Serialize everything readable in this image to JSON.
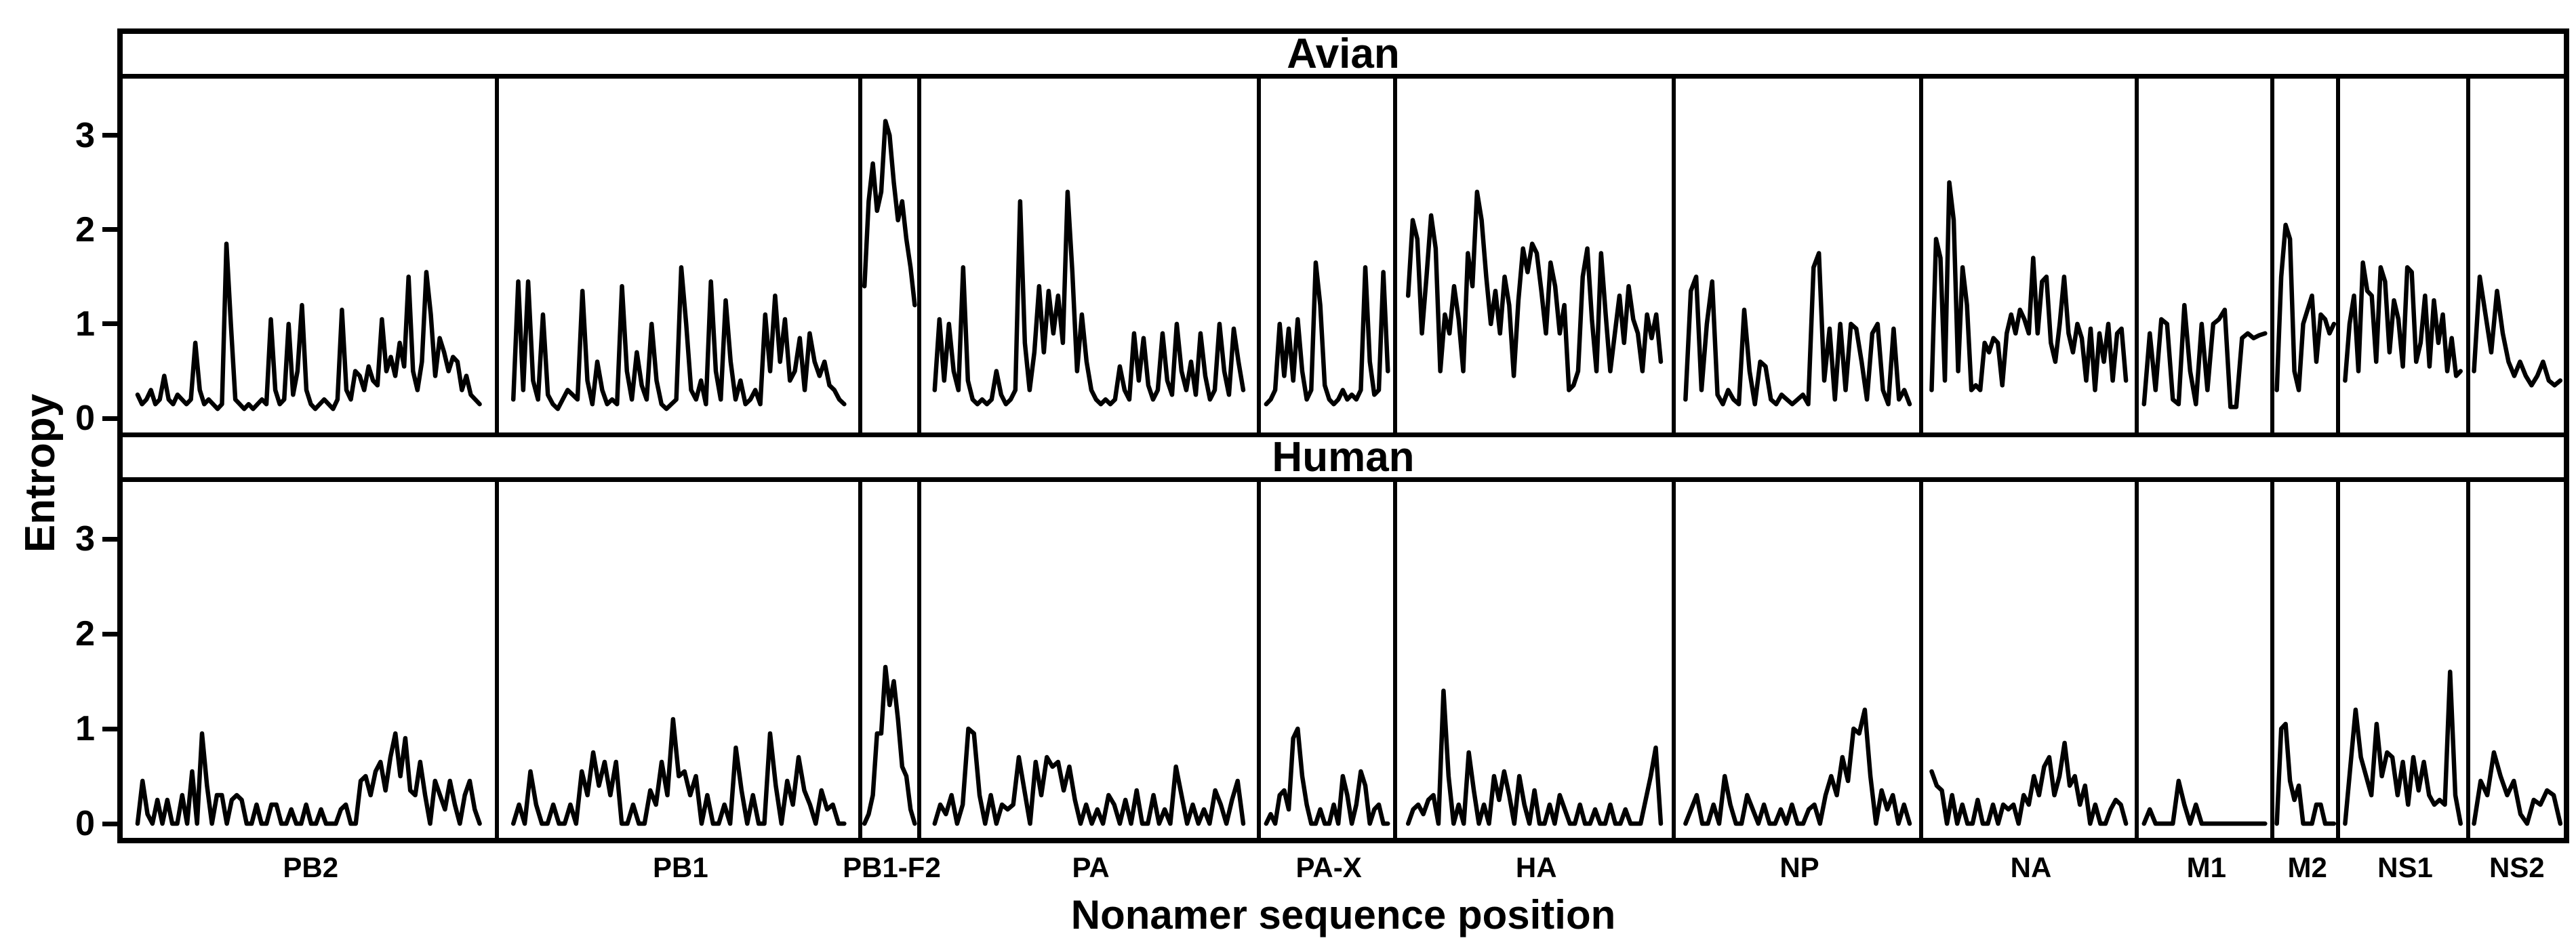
{
  "figure": {
    "background": "#ffffff",
    "line_color": "#000000",
    "border_color": "#000000"
  },
  "chart_data": {
    "type": "line",
    "title": "",
    "xlabel": "Nonamer sequence position",
    "ylabel": "Entropy",
    "ylim": [
      -0.15,
      3.6
    ],
    "y_ticks": [
      3,
      2,
      1,
      0
    ],
    "grid": "off",
    "legend": "none",
    "rows": [
      "Avian",
      "Human"
    ],
    "facets": [
      {
        "label": "PB2",
        "rel_width": 557,
        "avian": [
          0.25,
          0.15,
          0.2,
          0.3,
          0.15,
          0.2,
          0.45,
          0.2,
          0.15,
          0.25,
          0.2,
          0.15,
          0.2,
          0.8,
          0.3,
          0.15,
          0.2,
          0.15,
          0.1,
          0.15,
          1.85,
          1.0,
          0.2,
          0.15,
          0.1,
          0.15,
          0.1,
          0.15,
          0.2,
          0.15,
          1.05,
          0.3,
          0.15,
          0.2,
          1.0,
          0.25,
          0.5,
          1.2,
          0.3,
          0.15,
          0.1,
          0.15,
          0.2,
          0.15,
          0.1,
          0.2,
          1.15,
          0.3,
          0.2,
          0.5,
          0.45,
          0.3,
          0.55,
          0.4,
          0.35,
          1.05,
          0.5,
          0.65,
          0.45,
          0.8,
          0.55,
          1.5,
          0.5,
          0.3,
          0.6,
          1.55,
          1.1,
          0.45,
          0.85,
          0.7,
          0.5,
          0.65,
          0.6,
          0.3,
          0.45,
          0.25,
          0.2,
          0.15
        ],
        "human": [
          0,
          0.45,
          0.1,
          0,
          0.25,
          0,
          0.25,
          0,
          0,
          0.3,
          0,
          0.55,
          0,
          0.95,
          0.4,
          0,
          0.3,
          0.3,
          0,
          0.25,
          0.3,
          0.25,
          0,
          0,
          0.2,
          0,
          0,
          0.2,
          0.2,
          0,
          0,
          0.15,
          0,
          0,
          0.2,
          0,
          0,
          0.15,
          0,
          0,
          0,
          0.15,
          0.2,
          0,
          0,
          0.45,
          0.5,
          0.3,
          0.55,
          0.65,
          0.35,
          0.7,
          0.95,
          0.5,
          0.9,
          0.35,
          0.3,
          0.65,
          0.3,
          0,
          0.45,
          0.3,
          0.15,
          0.45,
          0.2,
          0,
          0.3,
          0.45,
          0.15,
          0
        ]
      },
      {
        "label": "PB1",
        "rel_width": 539,
        "avian": [
          0.2,
          1.45,
          0.3,
          1.45,
          0.4,
          0.2,
          1.1,
          0.25,
          0.15,
          0.1,
          0.2,
          0.3,
          0.25,
          0.2,
          1.35,
          0.4,
          0.15,
          0.6,
          0.3,
          0.15,
          0.2,
          0.15,
          1.4,
          0.5,
          0.2,
          0.7,
          0.35,
          0.2,
          1.0,
          0.4,
          0.15,
          0.1,
          0.15,
          0.2,
          1.6,
          1.0,
          0.3,
          0.2,
          0.4,
          0.15,
          1.45,
          0.5,
          0.2,
          1.25,
          0.6,
          0.2,
          0.4,
          0.15,
          0.2,
          0.3,
          0.15,
          1.1,
          0.5,
          1.3,
          0.6,
          1.05,
          0.4,
          0.5,
          0.85,
          0.3,
          0.9,
          0.6,
          0.45,
          0.6,
          0.35,
          0.3,
          0.2,
          0.15
        ],
        "human": [
          0,
          0.2,
          0,
          0.55,
          0.2,
          0,
          0,
          0.2,
          0,
          0,
          0.2,
          0,
          0.55,
          0.3,
          0.75,
          0.4,
          0.65,
          0.3,
          0.65,
          0,
          0,
          0.2,
          0,
          0,
          0.35,
          0.2,
          0.65,
          0.3,
          1.1,
          0.5,
          0.55,
          0.3,
          0.5,
          0,
          0.3,
          0,
          0,
          0.2,
          0,
          0.8,
          0.35,
          0,
          0.3,
          0,
          0,
          0.95,
          0.4,
          0,
          0.45,
          0.2,
          0.7,
          0.35,
          0.2,
          0,
          0.35,
          0.15,
          0.2,
          0,
          0
        ]
      },
      {
        "label": "PB1-F2",
        "rel_width": 87,
        "avian": [
          1.4,
          2.3,
          2.7,
          2.2,
          2.4,
          3.15,
          3.0,
          2.5,
          2.1,
          2.3,
          1.9,
          1.6,
          1.2
        ],
        "human": [
          0,
          0.1,
          0.3,
          0.95,
          0.95,
          1.65,
          1.25,
          1.5,
          1.1,
          0.6,
          0.5,
          0.15,
          0
        ]
      },
      {
        "label": "PA",
        "rel_width": 503,
        "avian": [
          0.3,
          1.05,
          0.4,
          1.0,
          0.5,
          0.3,
          1.6,
          0.4,
          0.2,
          0.15,
          0.2,
          0.15,
          0.2,
          0.5,
          0.25,
          0.15,
          0.2,
          0.3,
          2.3,
          0.8,
          0.3,
          0.7,
          1.4,
          0.7,
          1.35,
          0.9,
          1.3,
          0.8,
          2.4,
          1.55,
          0.5,
          1.1,
          0.6,
          0.3,
          0.2,
          0.15,
          0.2,
          0.15,
          0.2,
          0.55,
          0.3,
          0.2,
          0.9,
          0.4,
          0.85,
          0.35,
          0.2,
          0.3,
          0.9,
          0.4,
          0.25,
          1.0,
          0.5,
          0.3,
          0.6,
          0.25,
          0.9,
          0.45,
          0.2,
          0.3,
          1.0,
          0.5,
          0.25,
          0.95,
          0.6,
          0.3
        ],
        "human": [
          0,
          0.2,
          0.1,
          0.3,
          0,
          0.2,
          1.0,
          0.95,
          0.3,
          0,
          0.3,
          0,
          0.2,
          0.15,
          0.2,
          0.7,
          0.35,
          0,
          0.65,
          0.3,
          0.7,
          0.6,
          0.65,
          0.35,
          0.6,
          0.25,
          0,
          0.2,
          0,
          0.15,
          0,
          0.3,
          0.2,
          0,
          0.25,
          0,
          0.35,
          0,
          0,
          0.3,
          0,
          0.15,
          0,
          0.6,
          0.3,
          0,
          0.2,
          0,
          0.15,
          0,
          0.35,
          0.2,
          0,
          0.25,
          0.45,
          0
        ]
      },
      {
        "label": "PA-X",
        "rel_width": 202,
        "avian": [
          0.15,
          0.2,
          0.3,
          1.0,
          0.45,
          0.95,
          0.4,
          1.05,
          0.5,
          0.2,
          0.3,
          1.65,
          1.2,
          0.35,
          0.2,
          0.15,
          0.2,
          0.3,
          0.2,
          0.25,
          0.2,
          0.3,
          1.6,
          0.6,
          0.25,
          0.3,
          1.55,
          0.5
        ],
        "human": [
          0,
          0.1,
          0,
          0.3,
          0.35,
          0.15,
          0.9,
          1.0,
          0.5,
          0.2,
          0,
          0,
          0.15,
          0,
          0,
          0.2,
          0,
          0.5,
          0.3,
          0,
          0.2,
          0.55,
          0.4,
          0,
          0.15,
          0.2,
          0,
          0
        ]
      },
      {
        "label": "HA",
        "rel_width": 413,
        "avian": [
          1.3,
          2.1,
          1.9,
          0.9,
          1.5,
          2.15,
          1.8,
          0.5,
          1.1,
          0.9,
          1.4,
          1.05,
          0.5,
          1.75,
          1.4,
          2.4,
          2.1,
          1.5,
          1.0,
          1.35,
          0.9,
          1.5,
          1.2,
          0.45,
          1.25,
          1.8,
          1.55,
          1.85,
          1.75,
          1.35,
          0.9,
          1.65,
          1.4,
          0.9,
          1.2,
          0.3,
          0.35,
          0.5,
          1.5,
          1.8,
          1.05,
          0.5,
          1.75,
          1.1,
          0.5,
          0.9,
          1.3,
          0.8,
          1.4,
          1.05,
          0.9,
          0.5,
          1.1,
          0.85,
          1.1,
          0.6
        ],
        "human": [
          0,
          0.15,
          0.2,
          0.1,
          0.25,
          0.3,
          0,
          1.4,
          0.5,
          0,
          0.2,
          0,
          0.75,
          0.35,
          0,
          0.2,
          0,
          0.5,
          0.25,
          0.55,
          0.3,
          0,
          0.5,
          0.2,
          0,
          0.35,
          0,
          0,
          0.2,
          0,
          0.3,
          0.15,
          0,
          0,
          0.2,
          0,
          0,
          0.15,
          0,
          0,
          0.2,
          0,
          0,
          0.15,
          0,
          0,
          0,
          0.25,
          0.5,
          0.8,
          0
        ]
      },
      {
        "label": "NP",
        "rel_width": 367,
        "avian": [
          0.2,
          1.35,
          1.5,
          0.3,
          1.0,
          1.45,
          0.25,
          0.15,
          0.3,
          0.2,
          0.15,
          1.15,
          0.5,
          0.15,
          0.6,
          0.55,
          0.2,
          0.15,
          0.25,
          0.2,
          0.15,
          0.2,
          0.25,
          0.15,
          1.6,
          1.75,
          0.4,
          0.95,
          0.2,
          1.0,
          0.3,
          1.0,
          0.95,
          0.6,
          0.2,
          0.9,
          1.0,
          0.3,
          0.15,
          0.95,
          0.2,
          0.3,
          0.15
        ],
        "human": [
          0,
          0.15,
          0.3,
          0,
          0,
          0.2,
          0,
          0.5,
          0.2,
          0,
          0,
          0.3,
          0.15,
          0,
          0.2,
          0,
          0,
          0.15,
          0,
          0.2,
          0,
          0,
          0.15,
          0.2,
          0,
          0.3,
          0.5,
          0.3,
          0.7,
          0.45,
          1.0,
          0.95,
          1.2,
          0.5,
          0,
          0.35,
          0.15,
          0.3,
          0,
          0.2,
          0
        ]
      },
      {
        "label": "NA",
        "rel_width": 319,
        "avian": [
          0.3,
          1.9,
          1.7,
          0.4,
          2.5,
          2.1,
          0.5,
          1.6,
          1.2,
          0.3,
          0.35,
          0.3,
          0.8,
          0.7,
          0.85,
          0.8,
          0.35,
          0.9,
          1.1,
          0.9,
          1.15,
          1.05,
          0.9,
          1.7,
          0.9,
          1.45,
          1.5,
          0.8,
          0.6,
          1.0,
          1.5,
          0.9,
          0.7,
          1.0,
          0.85,
          0.4,
          0.95,
          0.3,
          0.9,
          0.6,
          1.0,
          0.4,
          0.9,
          0.95,
          0.4
        ],
        "human": [
          0.55,
          0.4,
          0.35,
          0,
          0.3,
          0,
          0.2,
          0,
          0,
          0.25,
          0,
          0,
          0.2,
          0,
          0.2,
          0.15,
          0.2,
          0,
          0.3,
          0.2,
          0.5,
          0.3,
          0.6,
          0.7,
          0.3,
          0.5,
          0.85,
          0.4,
          0.5,
          0.2,
          0.4,
          0,
          0.2,
          0,
          0,
          0.15,
          0.25,
          0.2,
          0
        ]
      },
      {
        "label": "M1",
        "rel_width": 201,
        "avian": [
          0.15,
          0.9,
          0.3,
          1.05,
          1.0,
          0.2,
          0.15,
          1.2,
          0.5,
          0.15,
          1.0,
          0.3,
          1.0,
          1.05,
          1.15,
          0.12,
          0.12,
          0.85,
          0.9,
          0.85,
          0.88,
          0.9
        ],
        "human": [
          0,
          0.15,
          0,
          0,
          0,
          0,
          0.45,
          0.2,
          0,
          0.2,
          0,
          0,
          0,
          0,
          0,
          0,
          0,
          0,
          0,
          0,
          0,
          0
        ]
      },
      {
        "label": "M2",
        "rel_width": 98,
        "avian": [
          0.3,
          1.5,
          2.05,
          1.9,
          0.5,
          0.3,
          1.0,
          1.15,
          1.3,
          0.6,
          1.1,
          1.05,
          0.9,
          1.0
        ],
        "human": [
          0,
          1.0,
          1.05,
          0.45,
          0.25,
          0.4,
          0,
          0,
          0,
          0.2,
          0.2,
          0,
          0,
          0
        ]
      },
      {
        "label": "NS1",
        "rel_width": 192,
        "avian": [
          0.4,
          1.0,
          1.3,
          0.5,
          1.65,
          1.35,
          1.3,
          0.6,
          1.6,
          1.45,
          0.7,
          1.25,
          1.05,
          0.55,
          1.6,
          1.55,
          0.6,
          0.8,
          1.3,
          0.55,
          1.25,
          0.8,
          1.1,
          0.5,
          0.85,
          0.45,
          0.5
        ],
        "human": [
          0,
          0.6,
          1.2,
          0.7,
          0.5,
          0.3,
          1.05,
          0.5,
          0.75,
          0.7,
          0.3,
          0.65,
          0.2,
          0.7,
          0.35,
          0.65,
          0.3,
          0.2,
          0.25,
          0.2,
          1.6,
          0.3,
          0
        ]
      },
      {
        "label": "NS2",
        "rel_width": 139,
        "avian": [
          0.5,
          1.5,
          1.1,
          0.7,
          1.35,
          0.9,
          0.6,
          0.45,
          0.6,
          0.45,
          0.35,
          0.45,
          0.6,
          0.4,
          0.35,
          0.4
        ],
        "human": [
          0,
          0.45,
          0.3,
          0.75,
          0.5,
          0.3,
          0.45,
          0.1,
          0,
          0.25,
          0.2,
          0.35,
          0.3,
          0
        ]
      }
    ]
  }
}
